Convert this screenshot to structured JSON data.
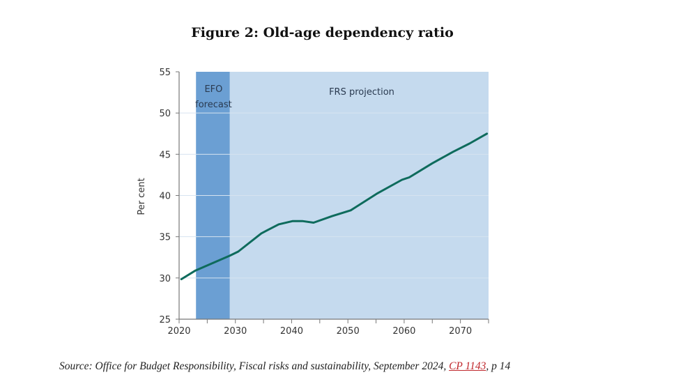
{
  "chart_data": {
    "type": "line",
    "title": "Figure 2: Old-age dependency ratio",
    "xlabel": "",
    "ylabel": "Per cent",
    "xlim": [
      2020,
      2075
    ],
    "ylim": [
      25,
      55
    ],
    "xticks": [
      2020,
      2030,
      2040,
      2050,
      2060,
      2070
    ],
    "yticks": [
      25,
      30,
      35,
      40,
      45,
      50,
      55
    ],
    "grid": true,
    "shaded_regions": [
      {
        "label": "EFO forecast",
        "label_lines": [
          "EFO",
          "forecast"
        ],
        "from": 2023,
        "to": 2029,
        "color": "#6b9fd3"
      },
      {
        "label": "FRS  projection",
        "from": 2029,
        "to": 2075,
        "color": "#c5daee"
      }
    ],
    "series": [
      {
        "color": "#0e6b5c",
        "x": [
          2020.4,
          2022.9,
          2029,
          2030.5,
          2034.6,
          2037.7,
          2040.2,
          2041.9,
          2043.9,
          2047.2,
          2050.5,
          2055.1,
          2059.6,
          2060.9,
          2065,
          2068.7,
          2071.6,
          2074.7
        ],
        "y": [
          29.85,
          30.9,
          32.7,
          33.2,
          35.4,
          36.5,
          36.9,
          36.9,
          36.7,
          37.5,
          38.2,
          40.2,
          41.9,
          42.2,
          43.9,
          45.3,
          46.3,
          47.5
        ]
      }
    ]
  },
  "source": {
    "text": "Source: Office for Budget Responsibility, Fiscal risks and sustainability, September 2024, ",
    "link": "CP 1143",
    "suffix": ", p 14"
  }
}
